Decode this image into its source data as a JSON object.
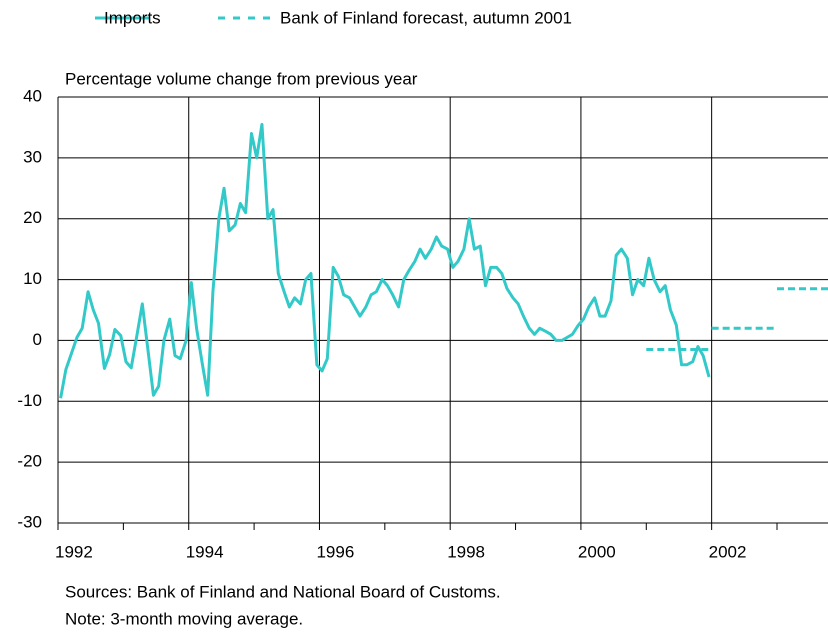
{
  "chart_data": {
    "type": "line",
    "ylabel": "Percentage volume change  from previous year",
    "notes": [
      "Sources: Bank of Finland and National Board of Customs.",
      "Note: 3-month moving average."
    ],
    "xlim": [
      1992,
      2003.78
    ],
    "xticks": [
      1992,
      1994,
      1996,
      1998,
      2000,
      2002
    ],
    "xminor_ticks": [
      1993,
      1995,
      1997,
      1999,
      2001,
      2003
    ],
    "ylim": [
      -30,
      40
    ],
    "yticks": [
      -30,
      -20,
      -10,
      0,
      10,
      20,
      30,
      40
    ],
    "grid": true,
    "series": [
      {
        "name": "Imports",
        "color": "#33c9c9",
        "style": "solid",
        "x": [
          1992.04,
          1992.12,
          1992.21,
          1992.29,
          1992.37,
          1992.46,
          1992.54,
          1992.62,
          1992.71,
          1992.79,
          1992.87,
          1992.96,
          1993.04,
          1993.12,
          1993.21,
          1993.29,
          1993.37,
          1993.46,
          1993.54,
          1993.62,
          1993.71,
          1993.79,
          1993.87,
          1993.96,
          1994.04,
          1994.12,
          1994.21,
          1994.29,
          1994.37,
          1994.46,
          1994.54,
          1994.62,
          1994.71,
          1994.79,
          1994.87,
          1994.96,
          1995.04,
          1995.12,
          1995.21,
          1995.29,
          1995.37,
          1995.46,
          1995.54,
          1995.62,
          1995.71,
          1995.79,
          1995.87,
          1995.96,
          1996.04,
          1996.12,
          1996.21,
          1996.29,
          1996.37,
          1996.46,
          1996.54,
          1996.62,
          1996.71,
          1996.79,
          1996.87,
          1996.96,
          1997.04,
          1997.12,
          1997.21,
          1997.29,
          1997.37,
          1997.46,
          1997.54,
          1997.62,
          1997.71,
          1997.79,
          1997.87,
          1997.96,
          1998.04,
          1998.12,
          1998.21,
          1998.29,
          1998.37,
          1998.46,
          1998.54,
          1998.62,
          1998.71,
          1998.79,
          1998.87,
          1998.96,
          1999.04,
          1999.12,
          1999.21,
          1999.29,
          1999.37,
          1999.46,
          1999.54,
          1999.62,
          1999.71,
          1999.79,
          1999.87,
          1999.96,
          2000.04,
          2000.12,
          2000.21,
          2000.29,
          2000.37,
          2000.46,
          2000.54,
          2000.62,
          2000.71,
          2000.79,
          2000.87,
          2000.96,
          2001.04,
          2001.12,
          2001.21,
          2001.29,
          2001.37,
          2001.46,
          2001.54,
          2001.62,
          2001.71,
          2001.79,
          2001.87,
          2001.96
        ],
        "values": [
          -9.5,
          -4.8,
          -2,
          0.5,
          2,
          8,
          5,
          2.8,
          -4.6,
          -2.3,
          1.8,
          0.8,
          -3.5,
          -4.5,
          1,
          6,
          -1,
          -9,
          -7.5,
          0,
          3.5,
          -2.5,
          -3,
          0,
          9.5,
          2,
          -4,
          -9,
          8,
          20,
          25,
          18,
          19,
          22.5,
          21,
          34,
          30,
          35.5,
          20,
          21.5,
          11,
          8,
          5.5,
          7,
          6,
          10,
          11,
          -4,
          -5,
          -3,
          12,
          10.5,
          7.5,
          7,
          5.5,
          4,
          5.5,
          7.5,
          8,
          10,
          9,
          7.5,
          5.5,
          10,
          11.5,
          13,
          15,
          13.5,
          15,
          17,
          15.5,
          15,
          12,
          13,
          15,
          20,
          15,
          15.5,
          9,
          12,
          12,
          11,
          8.5,
          7,
          6,
          4,
          2,
          1,
          2,
          1.5,
          1,
          0,
          0,
          0.5,
          1,
          2.5,
          3.5,
          5.5,
          7,
          4,
          4,
          6.5,
          14,
          15,
          13.5,
          7.5,
          10,
          9,
          13.5,
          10,
          8,
          9,
          5,
          2.5,
          -4,
          -4,
          -3.5,
          -1,
          -2.5,
          -6
        ]
      },
      {
        "name": "Bank of Finland forecast, autumn 2001",
        "color": "#33c9c9",
        "style": "dashed",
        "x": [
          2001,
          2002,
          2003
        ],
        "values": [
          -1.5,
          2,
          8.5
        ]
      }
    ]
  }
}
